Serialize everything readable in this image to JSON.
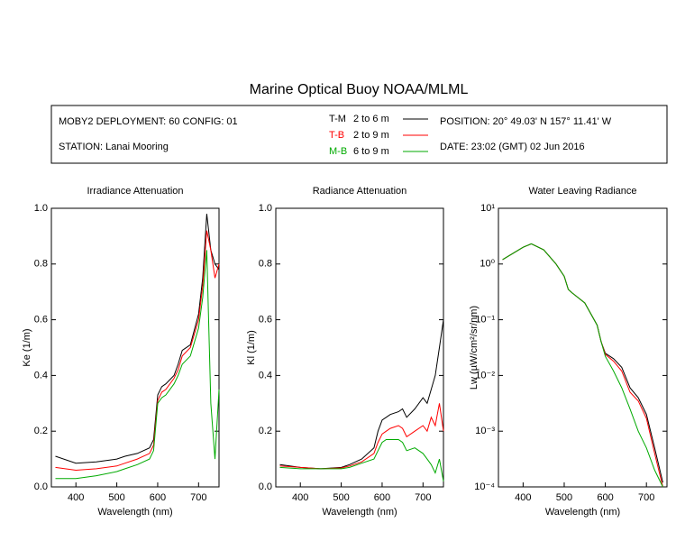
{
  "title": "Marine Optical Buoy NOAA/MLML",
  "deployment": "MOBY2 DEPLOYMENT: 60 CONFIG: 01",
  "station": "STATION: Lanai Mooring",
  "position": "POSITION: 20° 49.03' N   157° 11.41' W",
  "date": "DATE: 23:02 (GMT) 02 Jun 2016",
  "legend": [
    {
      "name": "T-M",
      "depth": "2 to 6  m",
      "color": "#000000"
    },
    {
      "name": "T-B",
      "depth": "2 to 9  m",
      "color": "#ff0000"
    },
    {
      "name": "M-B",
      "depth": "6 to 9  m",
      "color": "#00aa00"
    }
  ],
  "chart_data": [
    {
      "type": "line",
      "title": "Irradiance Attenuation",
      "x_label": "Wavelength (nm)",
      "y_label": "Ke  (1/m)",
      "x": [
        350,
        400,
        450,
        500,
        520,
        550,
        580,
        590,
        600,
        610,
        620,
        640,
        650,
        660,
        680,
        700,
        710,
        720,
        730,
        740,
        750
      ],
      "series": [
        {
          "values": [
            0.11,
            0.085,
            0.09,
            0.1,
            0.11,
            0.12,
            0.14,
            0.17,
            0.33,
            0.36,
            0.37,
            0.4,
            0.44,
            0.49,
            0.51,
            0.62,
            0.75,
            0.98,
            0.85,
            0.8,
            0.78
          ]
        },
        {
          "values": [
            0.07,
            0.06,
            0.065,
            0.075,
            0.085,
            0.1,
            0.12,
            0.15,
            0.31,
            0.34,
            0.35,
            0.39,
            0.42,
            0.47,
            0.5,
            0.6,
            0.72,
            0.92,
            0.85,
            0.75,
            0.8
          ]
        },
        {
          "values": [
            0.03,
            0.03,
            0.04,
            0.055,
            0.065,
            0.08,
            0.1,
            0.13,
            0.3,
            0.32,
            0.33,
            0.37,
            0.4,
            0.44,
            0.47,
            0.57,
            0.68,
            0.85,
            0.3,
            0.1,
            0.35
          ]
        }
      ],
      "xlim": [
        340,
        750
      ],
      "xticks": [
        400,
        500,
        600,
        700
      ],
      "ylim": [
        0,
        1
      ],
      "yticks": [
        {
          "value": 0,
          "label": "0.0"
        },
        {
          "value": 0.2,
          "label": "0.2"
        },
        {
          "value": 0.4,
          "label": "0.4"
        },
        {
          "value": 0.6,
          "label": "0.6"
        },
        {
          "value": 0.8,
          "label": "0.8"
        },
        {
          "value": 1,
          "label": "1.0"
        }
      ]
    },
    {
      "type": "line",
      "title": "Radiance Attenuation",
      "x_label": "Wavelength (nm)",
      "y_label": "Kl  (1/m)",
      "x": [
        350,
        400,
        450,
        500,
        520,
        550,
        580,
        590,
        600,
        610,
        620,
        640,
        650,
        660,
        680,
        700,
        710,
        720,
        730,
        740,
        750
      ],
      "series": [
        {
          "values": [
            0.08,
            0.07,
            0.065,
            0.07,
            0.08,
            0.1,
            0.14,
            0.2,
            0.24,
            0.25,
            0.26,
            0.27,
            0.28,
            0.25,
            0.28,
            0.32,
            0.3,
            0.35,
            0.4,
            0.5,
            0.6
          ]
        },
        {
          "values": [
            0.075,
            0.07,
            0.065,
            0.068,
            0.075,
            0.09,
            0.12,
            0.16,
            0.19,
            0.2,
            0.21,
            0.22,
            0.21,
            0.18,
            0.2,
            0.22,
            0.2,
            0.25,
            0.22,
            0.3,
            0.2
          ]
        },
        {
          "values": [
            0.07,
            0.065,
            0.065,
            0.065,
            0.07,
            0.085,
            0.1,
            0.13,
            0.16,
            0.17,
            0.17,
            0.17,
            0.16,
            0.13,
            0.14,
            0.12,
            0.1,
            0.08,
            0.05,
            0.1,
            0.02
          ]
        }
      ],
      "xlim": [
        340,
        750
      ],
      "xticks": [
        400,
        500,
        600,
        700
      ],
      "ylim": [
        0,
        1
      ],
      "yticks": [
        {
          "value": 0,
          "label": "0.0"
        },
        {
          "value": 0.2,
          "label": "0.2"
        },
        {
          "value": 0.4,
          "label": "0.4"
        },
        {
          "value": 0.6,
          "label": "0.6"
        },
        {
          "value": 0.8,
          "label": "0.8"
        },
        {
          "value": 1,
          "label": "1.0"
        }
      ]
    },
    {
      "type": "line",
      "title": "Water Leaving Radiance",
      "x_label": "Wavelength (nm)",
      "y_label": "Lw  (µW/cm²/sr/nm)",
      "log_y": true,
      "x": [
        350,
        400,
        420,
        450,
        480,
        500,
        510,
        520,
        550,
        580,
        590,
        600,
        620,
        640,
        660,
        680,
        700,
        720,
        740
      ],
      "series": [
        {
          "values": [
            1.2,
            2.0,
            2.3,
            1.8,
            1.0,
            0.6,
            0.35,
            0.3,
            0.2,
            0.08,
            0.04,
            0.025,
            0.02,
            0.014,
            0.006,
            0.004,
            0.002,
            0.0005,
            0.00012
          ]
        },
        {
          "values": [
            1.2,
            2.0,
            2.3,
            1.8,
            1.0,
            0.6,
            0.35,
            0.3,
            0.2,
            0.08,
            0.04,
            0.024,
            0.018,
            0.012,
            0.005,
            0.0035,
            0.0017,
            0.0004,
            0.0001
          ]
        },
        {
          "values": [
            1.2,
            2.0,
            2.3,
            1.8,
            1.0,
            0.6,
            0.35,
            0.3,
            0.2,
            0.08,
            0.04,
            0.022,
            0.012,
            0.006,
            0.0025,
            0.001,
            0.0005,
            0.0002,
            0.0001
          ]
        }
      ],
      "xlim": [
        340,
        750
      ],
      "xticks": [
        400,
        500,
        600,
        700
      ],
      "ylim": [
        0.0001,
        10
      ],
      "yticks": [
        {
          "value": 0.0001,
          "label": "10⁻⁴"
        },
        {
          "value": 0.001,
          "label": "10⁻³"
        },
        {
          "value": 0.01,
          "label": "10⁻²"
        },
        {
          "value": 0.1,
          "label": "10⁻¹"
        },
        {
          "value": 1,
          "label": "10⁰"
        },
        {
          "value": 10,
          "label": "10¹"
        }
      ]
    }
  ]
}
